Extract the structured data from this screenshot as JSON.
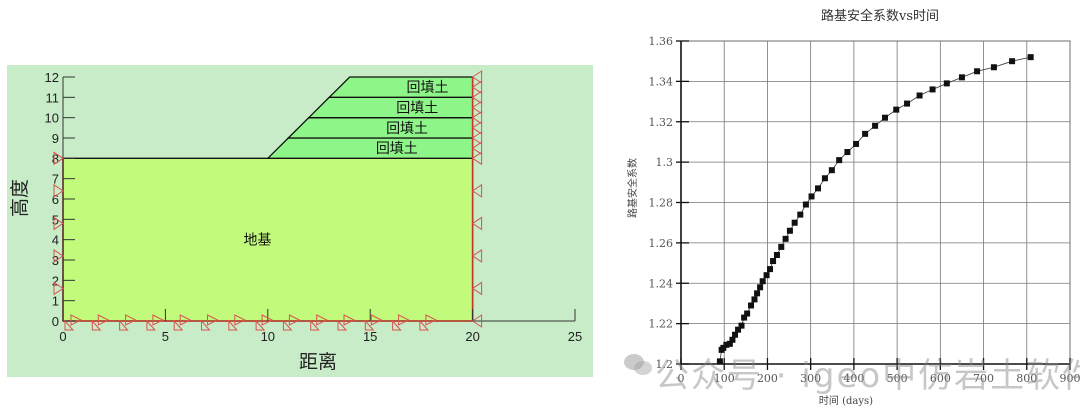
{
  "chart_data": [
    {
      "type": "diagram-section",
      "xlabel": "距离",
      "ylabel": "高度",
      "xlim": [
        0,
        25
      ],
      "ylim": [
        0,
        12
      ],
      "x_ticks": [
        0,
        5,
        10,
        15,
        20,
        25
      ],
      "y_ticks": [
        0,
        1,
        2,
        3,
        4,
        5,
        6,
        7,
        8,
        9,
        10,
        11,
        12
      ],
      "regions": [
        {
          "label": "地基",
          "polygon": [
            [
              0,
              0
            ],
            [
              20,
              0
            ],
            [
              20,
              8
            ],
            [
              0,
              8
            ]
          ],
          "color": "#c2fb7c",
          "label_at": [
            9.5,
            4
          ]
        },
        {
          "label": "回填土",
          "polygon": [
            [
              10,
              8
            ],
            [
              20,
              8
            ],
            [
              20,
              9
            ],
            [
              11,
              9
            ]
          ],
          "color": "#8ef589",
          "label_at": [
            16.3,
            8.5
          ]
        },
        {
          "label": "回填土",
          "polygon": [
            [
              11,
              9
            ],
            [
              20,
              9
            ],
            [
              20,
              10
            ],
            [
              12,
              10
            ]
          ],
          "color": "#8ef589",
          "label_at": [
            16.8,
            9.5
          ]
        },
        {
          "label": "回填土",
          "polygon": [
            [
              12,
              10
            ],
            [
              20,
              10
            ],
            [
              20,
              11
            ],
            [
              13,
              11
            ]
          ],
          "color": "#8ef589",
          "label_at": [
            17.3,
            10.5
          ]
        },
        {
          "label": "回填土",
          "polygon": [
            [
              13,
              11
            ],
            [
              20,
              11
            ],
            [
              20,
              12
            ],
            [
              14,
              12
            ]
          ],
          "color": "#8ef589",
          "label_at": [
            17.8,
            11.5
          ]
        }
      ],
      "background": "#c8ecc8",
      "boundary_color": "#c0392b"
    },
    {
      "type": "line",
      "title": "路基安全系数vs时间",
      "xlabel": "时间  (days)",
      "ylabel": "路基安全系数",
      "xlim": [
        0,
        900
      ],
      "ylim": [
        1.2,
        1.36
      ],
      "x_ticks": [
        0,
        100,
        200,
        300,
        400,
        500,
        600,
        700,
        800,
        900
      ],
      "y_ticks": [
        "1.2",
        "1.22",
        "1.24",
        "1.26",
        "1.28",
        "1.3",
        "1.32",
        "1.34",
        "1.36"
      ],
      "grid": true,
      "marker": "square",
      "x": [
        90,
        94,
        98,
        105,
        113,
        119,
        125,
        132,
        140,
        146,
        153,
        162,
        170,
        176,
        183,
        189,
        198,
        206,
        213,
        222,
        232,
        242,
        252,
        263,
        276,
        289,
        302,
        317,
        333,
        349,
        366,
        385,
        405,
        426,
        449,
        472,
        498,
        523,
        552,
        582,
        615,
        650,
        685,
        724,
        766,
        809
      ],
      "y": [
        1.2013,
        1.207,
        1.208,
        1.2095,
        1.21,
        1.212,
        1.2145,
        1.217,
        1.219,
        1.223,
        1.225,
        1.229,
        1.232,
        1.235,
        1.238,
        1.241,
        1.244,
        1.247,
        1.251,
        1.254,
        1.258,
        1.262,
        1.266,
        1.27,
        1.274,
        1.279,
        1.283,
        1.287,
        1.292,
        1.296,
        1.301,
        1.305,
        1.309,
        1.314,
        1.318,
        1.322,
        1.326,
        1.329,
        1.333,
        1.336,
        1.339,
        1.342,
        1.345,
        1.347,
        1.35,
        1.352
      ]
    }
  ],
  "watermark": {
    "text": "公众号 · igeo中仿岩土软件",
    "icon": "wechat-icon"
  }
}
